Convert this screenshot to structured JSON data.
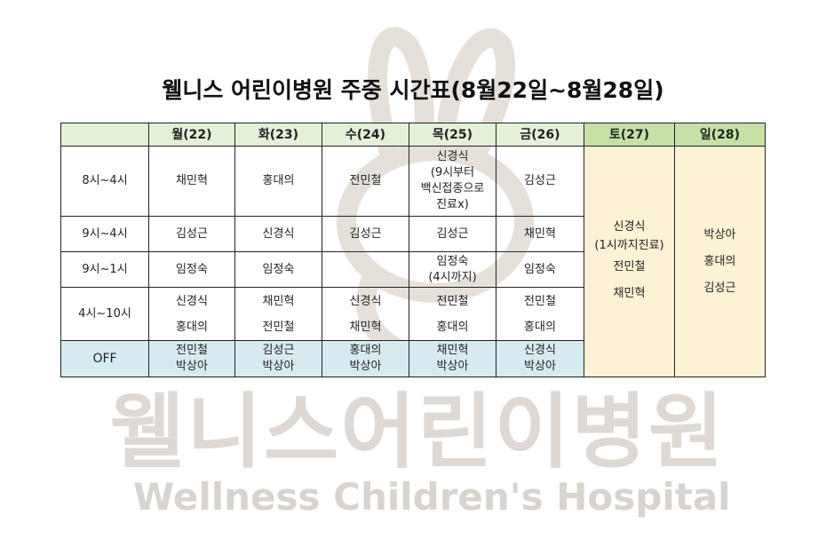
{
  "title": "웰니스 어린이병원 주중 시간표(8월22일~8월28일)",
  "watermark": {
    "ko": "웰니스어린이병원",
    "en": "Wellness Children's Hospital",
    "logo": "rabbit-logo"
  },
  "colors": {
    "header": "#e4f0d8",
    "weekend_header": "#c6e0a8",
    "weekend_cell": "#fdf0d2",
    "off_row": "#d6ebf0"
  },
  "headers": [
    "",
    "월(22)",
    "화(23)",
    "수(24)",
    "목(25)",
    "금(26)",
    "토(27)",
    "일(28)"
  ],
  "rows": [
    {
      "time": "8시~4시",
      "cells": [
        "채민혁",
        "홍대의",
        "전민철",
        "신경식\n(9시부터\n백신접종으로\n진료x)",
        "김성근"
      ]
    },
    {
      "time": "9시~4시",
      "cells": [
        "김성근",
        "신경식",
        "김성근",
        "김성근",
        "채민혁"
      ]
    },
    {
      "time": "9시~1시",
      "cells": [
        "임정숙",
        "임정숙",
        "",
        "임정숙\n(4시까지)",
        "임정숙"
      ]
    },
    {
      "time": "4시~10시",
      "cells": [
        "신경식\n홍대의",
        "채민혁\n전민철",
        "신경식\n채민혁",
        "전민철\n홍대의",
        "전민철\n홍대의"
      ]
    },
    {
      "time": "OFF",
      "cells": [
        "전민철\n박상아",
        "김성근\n박상아",
        "홍대의\n박상아",
        "채민혁\n박상아",
        "신경식\n박상아"
      ]
    }
  ],
  "saturday": [
    "신경식",
    "(1시까지진료)",
    "전민철",
    "채민혁"
  ],
  "sunday": [
    "박상아",
    "홍대의",
    "김성근"
  ]
}
